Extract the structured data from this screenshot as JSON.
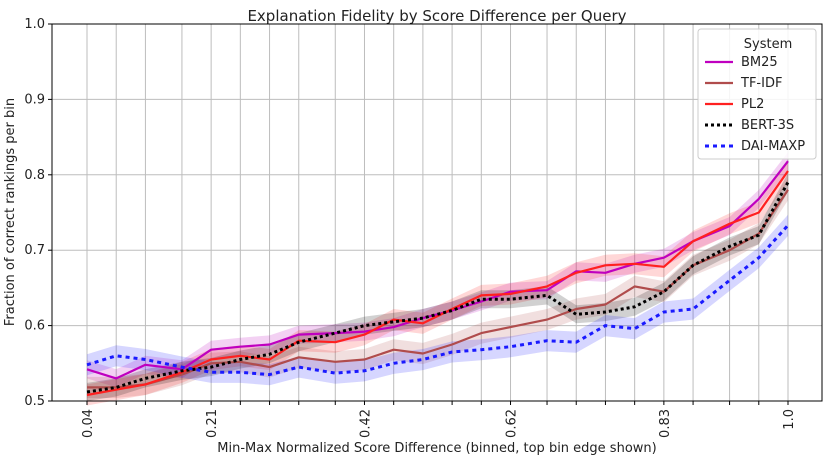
{
  "chart_data": {
    "type": "line",
    "title": "Explanation Fidelity by Score Difference per Query",
    "xlabel": "Min-Max Normalized Score Difference (binned, top bin edge shown)",
    "ylabel": "Fraction of correct rankings per bin",
    "ylim": [
      0.5,
      1.0
    ],
    "xlim": [
      0.0,
      1.0
    ],
    "yticks": [
      "0.5",
      "0.6",
      "0.7",
      "0.8",
      "0.9",
      "1.0"
    ],
    "ytick_values": [
      0.5,
      0.6,
      0.7,
      0.8,
      0.9,
      1.0
    ],
    "xtick_labels": [
      "0.04",
      "0.21",
      "0.42",
      "0.62",
      "0.83",
      "1.0"
    ],
    "xtick_positions": [
      0.04,
      0.21,
      0.42,
      0.62,
      0.83,
      1.0
    ],
    "x": [
      0.04,
      0.08,
      0.12,
      0.17,
      0.21,
      0.25,
      0.29,
      0.33,
      0.38,
      0.42,
      0.46,
      0.5,
      0.54,
      0.58,
      0.62,
      0.67,
      0.71,
      0.75,
      0.79,
      0.83,
      0.87,
      0.92,
      0.96,
      1.0
    ],
    "grid": true,
    "legend": {
      "title": "System",
      "position": "top-right"
    },
    "series": [
      {
        "name": "BM25",
        "color": "#bf00bf",
        "style": "solid",
        "band": 0.012,
        "values": [
          0.542,
          0.53,
          0.548,
          0.542,
          0.568,
          0.572,
          0.575,
          0.588,
          0.59,
          0.592,
          0.598,
          0.61,
          0.62,
          0.632,
          0.645,
          0.647,
          0.672,
          0.67,
          0.682,
          0.69,
          0.712,
          0.732,
          0.768,
          0.818
        ]
      },
      {
        "name": "TF-IDF",
        "color": "#b04c4c",
        "style": "solid",
        "band": 0.014,
        "values": [
          0.518,
          0.518,
          0.522,
          0.535,
          0.55,
          0.552,
          0.545,
          0.558,
          0.552,
          0.555,
          0.568,
          0.563,
          0.575,
          0.59,
          0.598,
          0.608,
          0.622,
          0.628,
          0.652,
          0.645,
          0.68,
          0.7,
          0.722,
          0.78
        ]
      },
      {
        "name": "PL2",
        "color": "#ff2020",
        "style": "solid",
        "band": 0.014,
        "values": [
          0.508,
          0.515,
          0.522,
          0.538,
          0.555,
          0.56,
          0.555,
          0.58,
          0.578,
          0.588,
          0.608,
          0.603,
          0.622,
          0.64,
          0.642,
          0.652,
          0.67,
          0.68,
          0.682,
          0.678,
          0.712,
          0.735,
          0.75,
          0.805
        ]
      },
      {
        "name": "BERT-3S",
        "color": "#000000",
        "style": "dotted",
        "band": 0.012,
        "values": [
          0.512,
          0.518,
          0.53,
          0.54,
          0.545,
          0.555,
          0.562,
          0.578,
          0.59,
          0.6,
          0.605,
          0.61,
          0.62,
          0.635,
          0.635,
          0.64,
          0.615,
          0.618,
          0.625,
          0.645,
          0.68,
          0.705,
          0.72,
          0.79
        ]
      },
      {
        "name": "DAI-MAXP",
        "color": "#1a1aff",
        "style": "dashed",
        "band": 0.014,
        "values": [
          0.548,
          0.56,
          0.555,
          0.545,
          0.538,
          0.538,
          0.535,
          0.545,
          0.537,
          0.54,
          0.55,
          0.555,
          0.565,
          0.568,
          0.572,
          0.58,
          0.578,
          0.6,
          0.596,
          0.618,
          0.622,
          0.66,
          0.69,
          0.733
        ]
      }
    ]
  }
}
